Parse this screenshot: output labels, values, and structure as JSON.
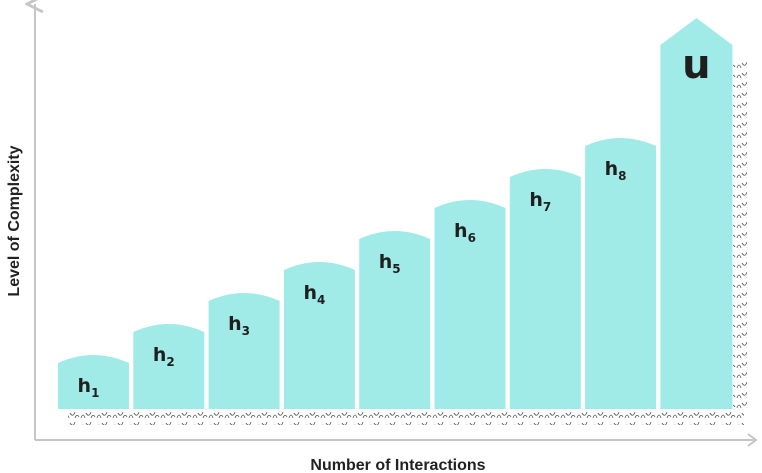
{
  "colors": {
    "bar_fill": "#a0ebe8",
    "axis": "#c6c6c6",
    "texture": "#555555"
  },
  "axes": {
    "x_title": "Number of Interactions",
    "y_title": "Level of Complexity"
  },
  "bars": [
    {
      "label": "h",
      "subscript": "1",
      "level": 1
    },
    {
      "label": "h",
      "subscript": "2",
      "level": 2
    },
    {
      "label": "h",
      "subscript": "3",
      "level": 3
    },
    {
      "label": "h",
      "subscript": "4",
      "level": 4
    },
    {
      "label": "h",
      "subscript": "5",
      "level": 5
    },
    {
      "label": "h",
      "subscript": "6",
      "level": 6
    },
    {
      "label": "h",
      "subscript": "7",
      "level": 7
    },
    {
      "label": "h",
      "subscript": "8",
      "level": 8
    }
  ],
  "final_bar": {
    "label": "u"
  }
}
